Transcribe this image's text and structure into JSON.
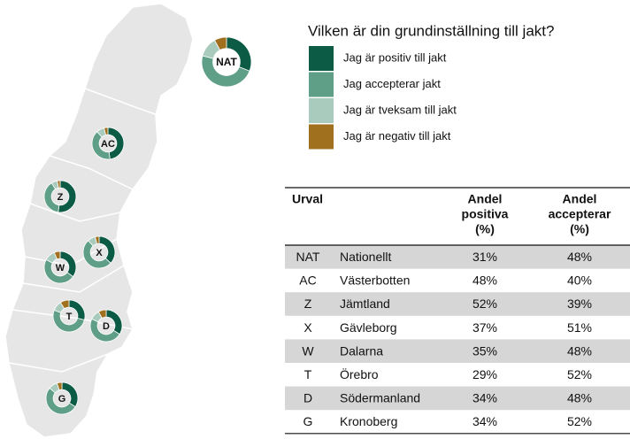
{
  "legend": {
    "title": "Vilken är din grundinställning till jakt?",
    "items": [
      {
        "label": "Jag är positiv till jakt",
        "color": "#0b5b45"
      },
      {
        "label": "Jag accepterar jakt",
        "color": "#5f9e87"
      },
      {
        "label": "Jag är tveksam till jakt",
        "color": "#a9cbbd"
      },
      {
        "label": "Jag är negativ till jakt",
        "color": "#a0701e"
      }
    ]
  },
  "table": {
    "header": [
      [
        "Urval"
      ],
      [],
      [
        "Andel",
        "positiva",
        "(%)"
      ],
      [
        "Andel",
        "accepterar",
        "(%)"
      ]
    ],
    "rows": [
      [
        "NAT",
        "Nationellt",
        "31%",
        "48%"
      ],
      [
        "AC",
        "Västerbotten",
        "48%",
        "40%"
      ],
      [
        "Z",
        "Jämtland",
        "52%",
        "39%"
      ],
      [
        "X",
        "Gävleborg",
        "37%",
        "51%"
      ],
      [
        "W",
        "Dalarna",
        "35%",
        "48%"
      ],
      [
        "T",
        "Örebro",
        "29%",
        "52%"
      ],
      [
        "D",
        "Södermanland",
        "34%",
        "48%"
      ],
      [
        "G",
        "Kronoberg",
        "34%",
        "52%"
      ]
    ]
  },
  "donuts": [
    {
      "values": [
        31,
        48,
        13,
        8
      ]
    },
    {
      "values": [
        48,
        40,
        8,
        4
      ]
    },
    {
      "values": [
        52,
        39,
        6,
        3
      ]
    },
    {
      "values": [
        37,
        51,
        8,
        4
      ]
    },
    {
      "values": [
        35,
        48,
        11,
        6
      ]
    },
    {
      "values": [
        29,
        52,
        10,
        9
      ]
    },
    {
      "values": [
        34,
        48,
        10,
        8
      ]
    },
    {
      "values": [
        34,
        52,
        9,
        5
      ]
    }
  ]
}
